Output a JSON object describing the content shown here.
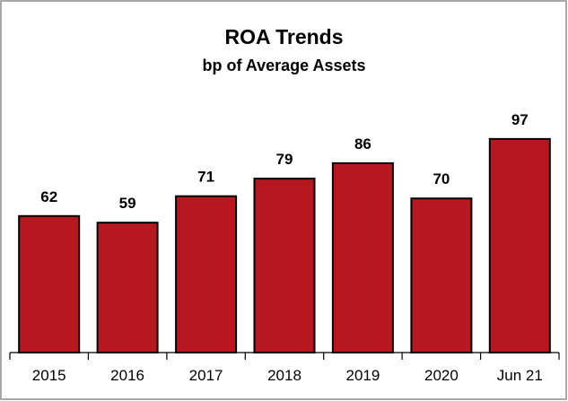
{
  "chart_data": {
    "type": "bar",
    "title": "ROA Trends",
    "subtitle": "bp of Average Assets",
    "categories": [
      "2015",
      "2016",
      "2017",
      "2018",
      "2019",
      "2020",
      "Jun 21"
    ],
    "values": [
      62,
      59,
      71,
      79,
      86,
      70,
      97
    ],
    "value_labels": [
      "62",
      "59",
      "71",
      "79",
      "86",
      "70",
      "97"
    ],
    "xlabel": "",
    "ylabel": "",
    "ylim": [
      0,
      150
    ],
    "grid": false,
    "legend": "none",
    "bar_color": "#b5191f",
    "bar_border_color": "#000000"
  }
}
